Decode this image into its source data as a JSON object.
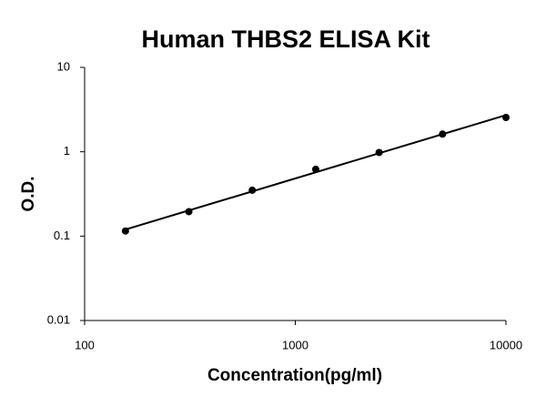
{
  "chart_data": {
    "type": "scatter",
    "title": "Human THBS2 ELISA Kit",
    "x_label": "Concentration(pg/ml)",
    "y_label": "O.D.",
    "x": [
      156.25,
      312.5,
      625,
      1250,
      2500,
      5000,
      10000
    ],
    "series": [
      {
        "color": "#000000",
        "values": [
          0.115,
          0.195,
          0.35,
          0.62,
          0.98,
          1.62,
          2.55
        ]
      }
    ],
    "xscale": "log",
    "yscale": "log",
    "xlim": [
      100,
      10000
    ],
    "ylim": [
      0.01,
      10
    ],
    "xticks": [
      100,
      1000,
      10000
    ],
    "yticks": [
      0.01,
      0.1,
      1,
      10
    ],
    "trendline": true,
    "grid": false
  }
}
